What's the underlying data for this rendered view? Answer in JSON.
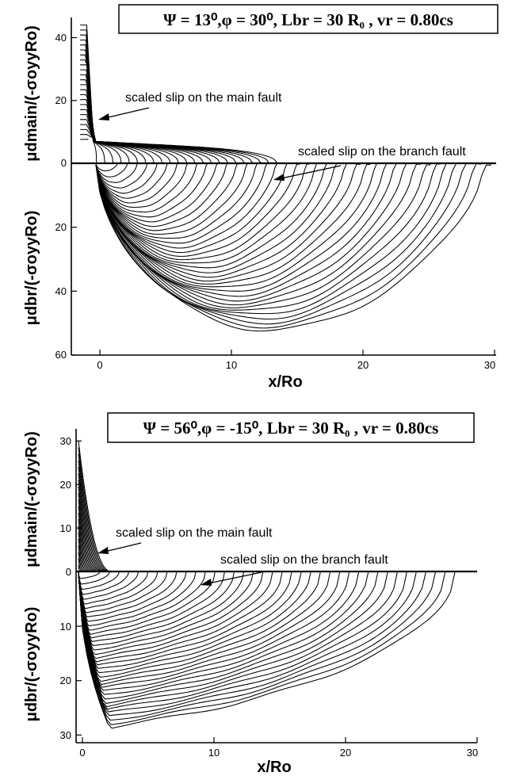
{
  "chart_data": [
    {
      "type": "line",
      "parameters_label": "Ψ = 13⁰,φ =  30⁰, Lbr = 30 R₀ , vr = 0.80cs",
      "xlabel": "x/Ro",
      "ylabel_top": "μdmain/(-σoyyRo)",
      "ylabel_bottom": "μdbr/(-σoyyRo)",
      "xlim": [
        -2,
        30
      ],
      "ylim_main": [
        0,
        46
      ],
      "ylim_branch": [
        0,
        60
      ],
      "x_ticks": [
        "0",
        "10",
        "20",
        "30"
      ],
      "y_ticks_main": [
        "0",
        "20",
        "40"
      ],
      "y_ticks_branch": [
        "20",
        "40",
        "60"
      ],
      "annotation_main": "scaled slip on the main fault",
      "annotation_branch": "scaled slip on the branch fault",
      "main_fault": {
        "n_curves": 24,
        "x_range": [
          -1.5,
          13.5
        ],
        "peak_slip": 44,
        "plateau_slip": 6
      },
      "branch_fault": {
        "n_curves": 38,
        "rupture_tip_end": 29.7,
        "max_slip": 59
      }
    },
    {
      "type": "line",
      "parameters_label": "Ψ = 56⁰,φ = -15⁰, Lbr = 30 R₀ , vr = 0.80cs",
      "xlabel": "x/Ro",
      "ylabel_top": "μdmain/(-σoyyRo)",
      "ylabel_bottom": "μdbr/(-σoyyRo)",
      "xlim": [
        -0.5,
        30
      ],
      "ylim_main": [
        0,
        33
      ],
      "ylim_branch": [
        0,
        31.5
      ],
      "x_ticks": [
        "0",
        "10",
        "20",
        "30"
      ],
      "y_ticks_main": [
        "0",
        "10",
        "20",
        "30"
      ],
      "y_ticks_branch": [
        "10",
        "20",
        "30"
      ],
      "annotation_main": "scaled slip on the main fault",
      "annotation_branch": "scaled slip on the branch fault",
      "main_fault": {
        "n_curves": 20,
        "x_range": [
          -0.3,
          2.2
        ],
        "peak_slip": 30
      },
      "branch_fault": {
        "n_curves": 38,
        "rupture_tip_end": 28.3,
        "max_slip": 29.5
      }
    }
  ]
}
